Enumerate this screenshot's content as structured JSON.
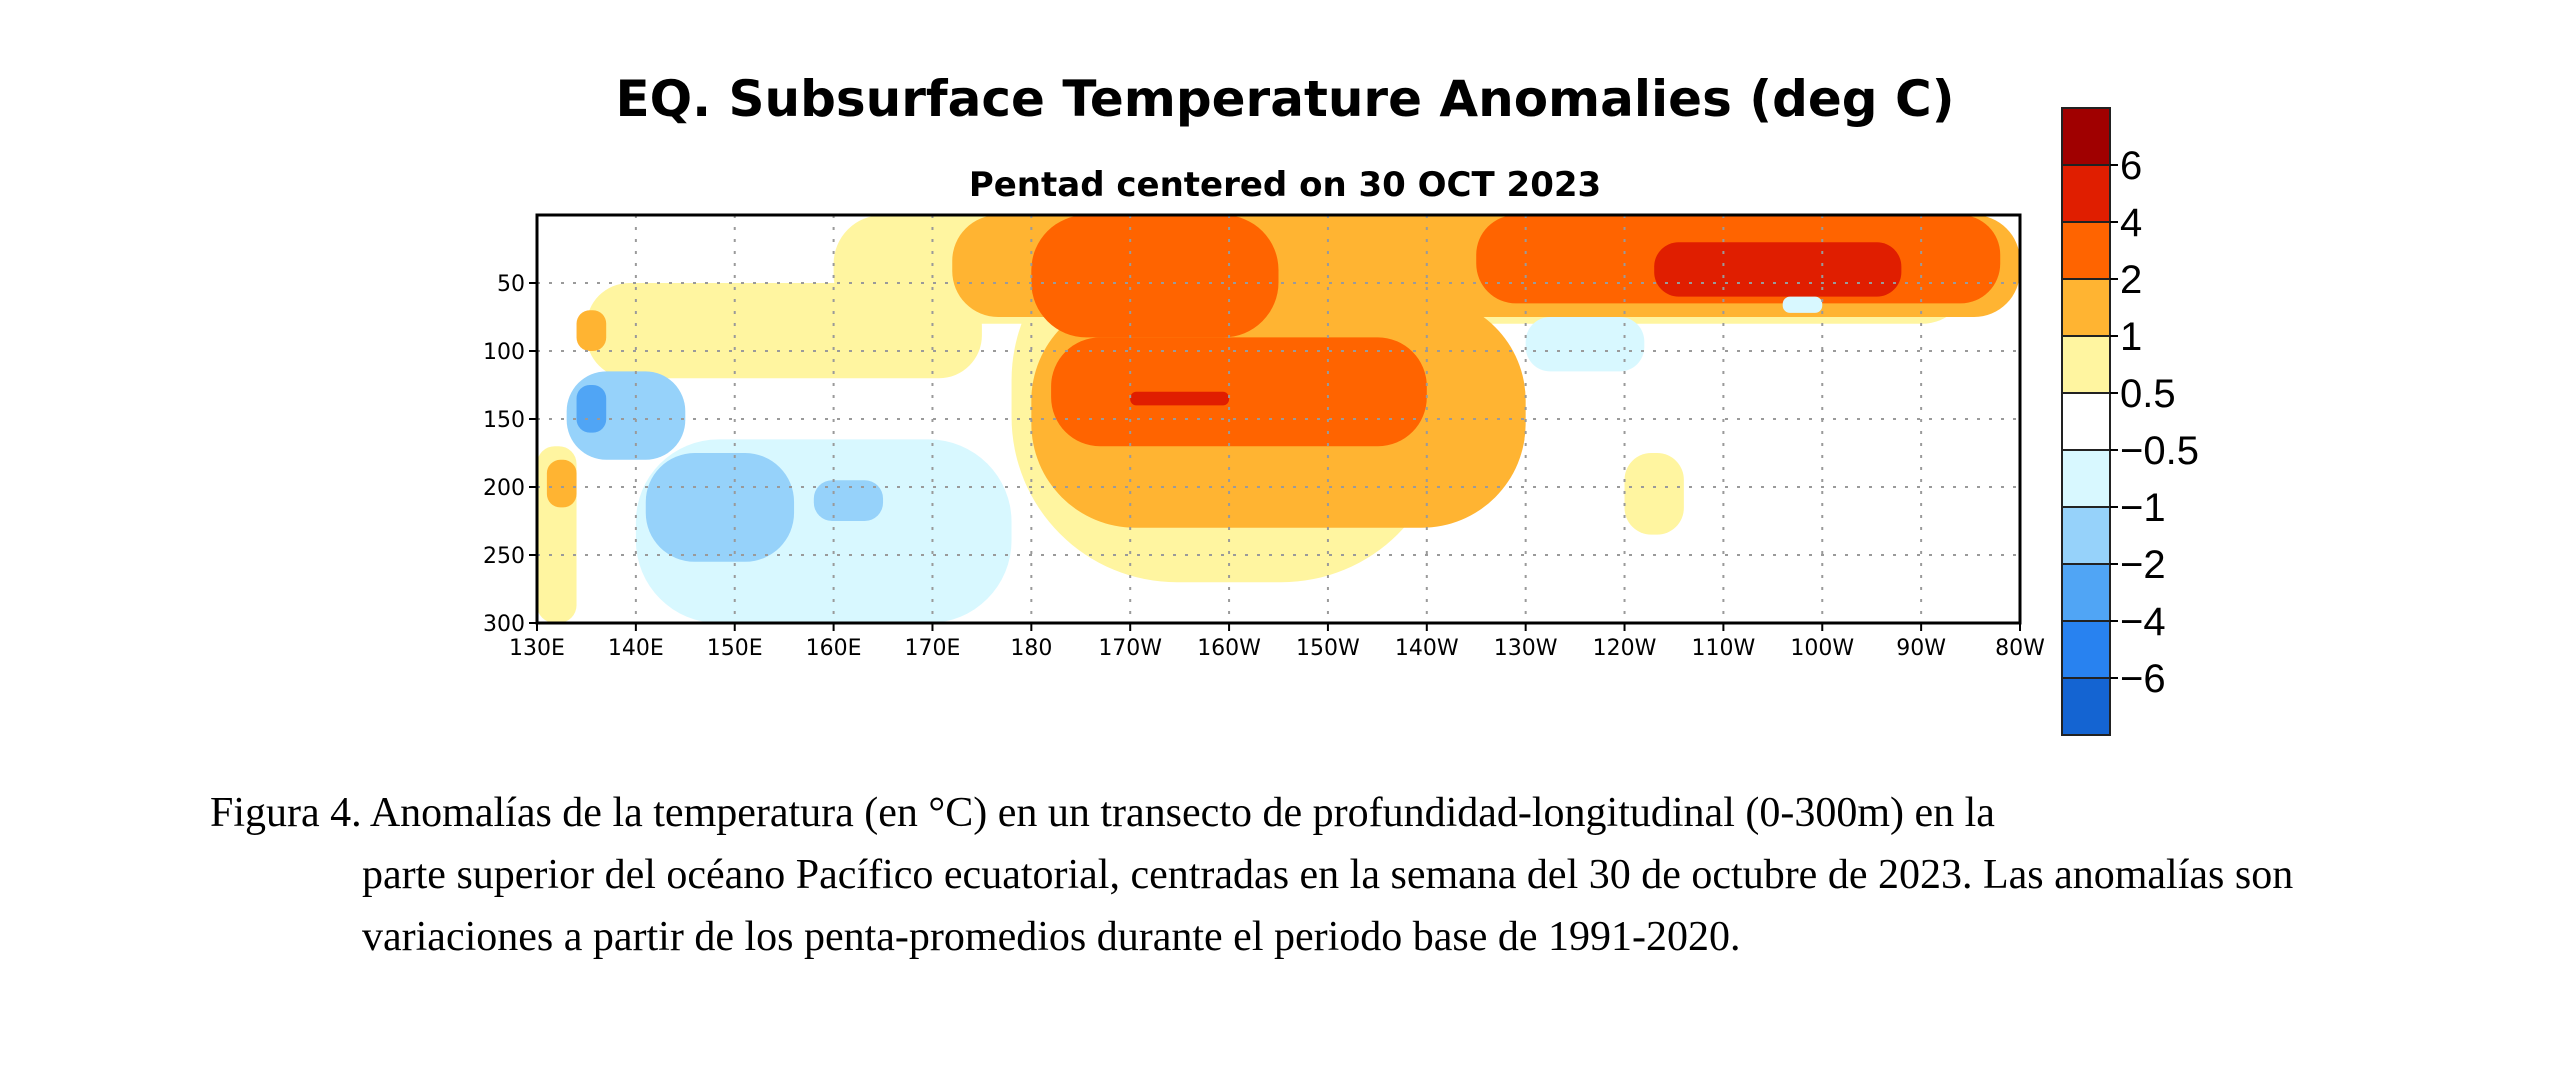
{
  "chart_data": {
    "type": "heatmap",
    "title": "EQ. Subsurface Temperature Anomalies (deg C)",
    "subtitle": "Pentad centered on 30 OCT 2023",
    "xlabel": "",
    "ylabel": "",
    "x_ticks": [
      "130E",
      "140E",
      "150E",
      "160E",
      "170E",
      "180",
      "170W",
      "160W",
      "150W",
      "140W",
      "130W",
      "120W",
      "110W",
      "100W",
      "90W",
      "80W"
    ],
    "x_tick_lon": [
      130,
      140,
      150,
      160,
      170,
      180,
      190,
      200,
      210,
      220,
      230,
      240,
      250,
      260,
      270,
      280
    ],
    "xlim": [
      130,
      280
    ],
    "y_ticks": [
      "50",
      "100",
      "150",
      "200",
      "250",
      "300"
    ],
    "y_tick_values": [
      50,
      100,
      150,
      200,
      250,
      300
    ],
    "ylim": [
      0,
      300
    ],
    "y_inverted": true,
    "grid": true,
    "colorbar": {
      "placement": "right",
      "labels": [
        "6",
        "4",
        "2",
        "1",
        "0.5",
        "−0.5",
        "−1",
        "−2",
        "−4",
        "−6"
      ],
      "colors": [
        "#a00000",
        "#e01e00",
        "#ff6400",
        "#ffb432",
        "#fff5a0",
        "#ffffff",
        "#d8f8ff",
        "#96d2fa",
        "#50a5f5",
        "#2882f0",
        "#1464d2"
      ]
    },
    "levels": [
      -6,
      -4,
      -2,
      -1,
      -0.5,
      0.5,
      1,
      2,
      4,
      6
    ],
    "anomaly_regions": [
      {
        "value": 0.7,
        "lon": [
          160,
          275
        ],
        "depth": [
          0,
          80
        ]
      },
      {
        "value": 0.7,
        "lon": [
          135,
          175
        ],
        "depth": [
          50,
          120
        ]
      },
      {
        "value": 0.7,
        "lon": [
          178,
          222
        ],
        "depth": [
          0,
          270
        ]
      },
      {
        "value": 0.7,
        "lon": [
          240,
          246
        ],
        "depth": [
          175,
          235
        ]
      },
      {
        "value": 0.7,
        "lon": [
          130,
          134
        ],
        "depth": [
          170,
          300
        ]
      },
      {
        "value": 1.5,
        "lon": [
          172,
          280
        ],
        "depth": [
          0,
          75
        ]
      },
      {
        "value": 1.5,
        "lon": [
          180,
          230
        ],
        "depth": [
          60,
          230
        ]
      },
      {
        "value": 1.5,
        "lon": [
          134,
          137
        ],
        "depth": [
          70,
          100
        ]
      },
      {
        "value": 1.5,
        "lon": [
          131,
          134
        ],
        "depth": [
          180,
          215
        ]
      },
      {
        "value": 2.8,
        "lon": [
          180,
          205
        ],
        "depth": [
          0,
          90
        ]
      },
      {
        "value": 2.8,
        "lon": [
          182,
          220
        ],
        "depth": [
          90,
          170
        ]
      },
      {
        "value": 2.8,
        "lon": [
          225,
          278
        ],
        "depth": [
          0,
          65
        ]
      },
      {
        "value": 4.5,
        "lon": [
          243,
          268
        ],
        "depth": [
          20,
          60
        ]
      },
      {
        "value": 4.5,
        "lon": [
          190,
          200
        ],
        "depth": [
          130,
          140
        ]
      },
      {
        "value": -0.7,
        "lon": [
          140,
          178
        ],
        "depth": [
          165,
          300
        ]
      },
      {
        "value": -0.7,
        "lon": [
          230,
          242
        ],
        "depth": [
          75,
          115
        ]
      },
      {
        "value": -0.7,
        "lon": [
          256,
          260
        ],
        "depth": [
          60,
          72
        ]
      },
      {
        "value": -1.5,
        "lon": [
          133,
          145
        ],
        "depth": [
          115,
          180
        ]
      },
      {
        "value": -1.5,
        "lon": [
          141,
          156
        ],
        "depth": [
          175,
          255
        ]
      },
      {
        "value": -1.5,
        "lon": [
          158,
          165
        ],
        "depth": [
          195,
          225
        ]
      },
      {
        "value": -2.5,
        "lon": [
          134,
          137
        ],
        "depth": [
          125,
          160
        ]
      }
    ]
  },
  "caption": {
    "line1": "Figura 4. Anomalías de la temperatura (en °C) en un transecto de profundidad-longitudinal (0-300m) en la",
    "rest": "parte superior del océano Pacífico ecuatorial, centradas en la semana del 30 de octubre de 2023. Las anomalías son variaciones a partir de los penta-promedios durante el periodo base de 1991-2020."
  }
}
